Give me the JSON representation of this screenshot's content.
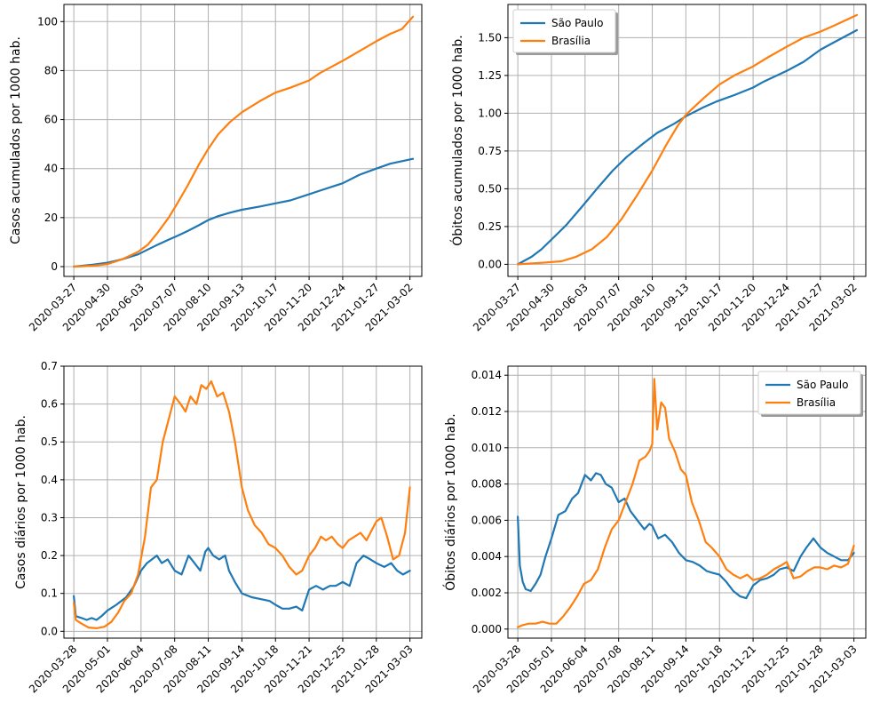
{
  "colors": {
    "sao_paulo": "#1f77b4",
    "brasilia": "#ff7f0e",
    "grid": "#b0b0b0"
  },
  "chart_data": [
    {
      "id": "casos-acumulados",
      "type": "line",
      "title": "",
      "xlabel": "",
      "ylabel": "Casos acumulados por 1000 hab.",
      "x_range": [
        "2020-03-17",
        "2021-03-14"
      ],
      "ylim": [
        -4,
        107
      ],
      "yticks": [
        0,
        20,
        40,
        60,
        80,
        100
      ],
      "ytick_labels": [
        "0",
        "20",
        "40",
        "60",
        "80",
        "100"
      ],
      "xticks": [
        "2020-03-27",
        "2020-04-30",
        "2020-06-03",
        "2020-07-07",
        "2020-08-10",
        "2020-09-13",
        "2020-10-17",
        "2020-11-20",
        "2020-12-24",
        "2021-01-27",
        "2021-03-02"
      ],
      "grid": true,
      "legend": null,
      "series": [
        {
          "key": "sao_paulo",
          "x": [
            "2020-03-27",
            "2020-04-15",
            "2020-04-30",
            "2020-05-15",
            "2020-05-31",
            "2020-06-10",
            "2020-06-20",
            "2020-07-01",
            "2020-07-10",
            "2020-07-20",
            "2020-08-01",
            "2020-08-10",
            "2020-08-20",
            "2020-09-01",
            "2020-09-13",
            "2020-10-01",
            "2020-10-17",
            "2020-11-01",
            "2020-11-20",
            "2020-12-01",
            "2020-12-24",
            "2021-01-10",
            "2021-01-27",
            "2021-02-10",
            "2021-03-05"
          ],
          "y": [
            0,
            0.8,
            1.6,
            3,
            5,
            7,
            9,
            11,
            12.6,
            14.5,
            17,
            19,
            20.6,
            22,
            23.2,
            24.5,
            25.8,
            27,
            29.5,
            31,
            34,
            37.5,
            40,
            42,
            44
          ]
        },
        {
          "key": "brasilia",
          "x": [
            "2020-03-27",
            "2020-04-15",
            "2020-04-30",
            "2020-05-15",
            "2020-05-31",
            "2020-06-10",
            "2020-06-20",
            "2020-07-01",
            "2020-07-10",
            "2020-07-20",
            "2020-08-01",
            "2020-08-10",
            "2020-08-20",
            "2020-09-01",
            "2020-09-13",
            "2020-10-01",
            "2020-10-17",
            "2020-11-01",
            "2020-11-20",
            "2020-12-01",
            "2020-12-24",
            "2021-01-10",
            "2021-01-27",
            "2021-02-10",
            "2021-02-22",
            "2021-03-05"
          ],
          "y": [
            0,
            0.3,
            1,
            3,
            6,
            9,
            14,
            20,
            26,
            33,
            42,
            48,
            54,
            59,
            63,
            67.5,
            71,
            73,
            76,
            79,
            84,
            88,
            92,
            95,
            97,
            102
          ]
        }
      ]
    },
    {
      "id": "obitos-acumulados",
      "type": "line",
      "title": "",
      "xlabel": "",
      "ylabel": "Óbitos acumulados por 1000 hab.",
      "x_range": [
        "2020-03-17",
        "2021-03-14"
      ],
      "ylim": [
        -0.08,
        1.72
      ],
      "yticks": [
        0,
        0.25,
        0.5,
        0.75,
        1.0,
        1.25,
        1.5
      ],
      "ytick_labels": [
        "0.00",
        "0.25",
        "0.50",
        "0.75",
        "1.00",
        "1.25",
        "1.50"
      ],
      "xticks": [
        "2020-03-27",
        "2020-04-30",
        "2020-06-03",
        "2020-07-07",
        "2020-08-10",
        "2020-09-13",
        "2020-10-17",
        "2020-11-20",
        "2020-12-24",
        "2021-01-27",
        "2021-03-02"
      ],
      "grid": true,
      "legend": {
        "placement": "top-left",
        "entries": [
          {
            "key": "sao_paulo",
            "label": "São Paulo"
          },
          {
            "key": "brasilia",
            "label": "Brasília"
          }
        ]
      },
      "series": [
        {
          "key": "sao_paulo",
          "x": [
            "2020-03-27",
            "2020-04-10",
            "2020-04-20",
            "2020-05-01",
            "2020-05-15",
            "2020-06-01",
            "2020-06-15",
            "2020-07-01",
            "2020-07-15",
            "2020-08-01",
            "2020-08-15",
            "2020-09-01",
            "2020-09-13",
            "2020-10-01",
            "2020-10-15",
            "2020-11-01",
            "2020-11-20",
            "2020-12-01",
            "2020-12-24",
            "2021-01-10",
            "2021-01-27",
            "2021-02-10",
            "2021-03-05"
          ],
          "y": [
            0,
            0.05,
            0.1,
            0.17,
            0.26,
            0.39,
            0.5,
            0.62,
            0.71,
            0.8,
            0.87,
            0.93,
            0.98,
            1.04,
            1.08,
            1.12,
            1.17,
            1.21,
            1.28,
            1.34,
            1.42,
            1.47,
            1.55
          ]
        },
        {
          "key": "brasilia",
          "x": [
            "2020-03-27",
            "2020-04-20",
            "2020-05-10",
            "2020-05-25",
            "2020-06-10",
            "2020-06-25",
            "2020-07-10",
            "2020-07-25",
            "2020-08-10",
            "2020-08-25",
            "2020-09-05",
            "2020-09-13",
            "2020-10-01",
            "2020-10-17",
            "2020-11-01",
            "2020-11-20",
            "2020-12-05",
            "2020-12-24",
            "2021-01-10",
            "2021-01-27",
            "2021-02-10",
            "2021-03-05"
          ],
          "y": [
            0,
            0.01,
            0.02,
            0.05,
            0.1,
            0.18,
            0.3,
            0.45,
            0.62,
            0.8,
            0.92,
            0.99,
            1.1,
            1.19,
            1.25,
            1.31,
            1.37,
            1.44,
            1.5,
            1.54,
            1.58,
            1.65
          ]
        }
      ]
    },
    {
      "id": "casos-diarios",
      "type": "line",
      "title": "",
      "xlabel": "",
      "ylabel": "Casos diários por 1000 hab.",
      "x_range": [
        "2020-03-18",
        "2021-03-15"
      ],
      "ylim": [
        -0.018,
        0.7
      ],
      "yticks": [
        0,
        0.1,
        0.2,
        0.3,
        0.4,
        0.5,
        0.6,
        0.7
      ],
      "ytick_labels": [
        "0.0",
        "0.1",
        "0.2",
        "0.3",
        "0.4",
        "0.5",
        "0.6",
        "0.7"
      ],
      "xticks": [
        "2020-03-28",
        "2020-05-01",
        "2020-06-04",
        "2020-07-08",
        "2020-08-11",
        "2020-09-14",
        "2020-10-18",
        "2020-11-21",
        "2020-12-25",
        "2021-01-28",
        "2021-03-03"
      ],
      "grid": true,
      "legend": null,
      "series": [
        {
          "key": "sao_paulo",
          "x": [
            "2020-03-28",
            "2020-03-30",
            "2020-04-05",
            "2020-04-10",
            "2020-04-15",
            "2020-04-20",
            "2020-04-25",
            "2020-05-01",
            "2020-05-10",
            "2020-05-20",
            "2020-05-28",
            "2020-06-04",
            "2020-06-10",
            "2020-06-15",
            "2020-06-20",
            "2020-06-25",
            "2020-07-01",
            "2020-07-08",
            "2020-07-15",
            "2020-07-22",
            "2020-07-28",
            "2020-08-03",
            "2020-08-08",
            "2020-08-11",
            "2020-08-16",
            "2020-08-22",
            "2020-08-28",
            "2020-09-01",
            "2020-09-07",
            "2020-09-14",
            "2020-09-24",
            "2020-10-03",
            "2020-10-12",
            "2020-10-18",
            "2020-10-25",
            "2020-11-01",
            "2020-11-08",
            "2020-11-14",
            "2020-11-21",
            "2020-11-28",
            "2020-12-05",
            "2020-12-12",
            "2020-12-18",
            "2020-12-25",
            "2021-01-01",
            "2021-01-08",
            "2021-01-15",
            "2021-01-22",
            "2021-01-28",
            "2021-02-05",
            "2021-02-12",
            "2021-02-18",
            "2021-02-24",
            "2021-03-03"
          ],
          "y": [
            0.093,
            0.04,
            0.035,
            0.03,
            0.035,
            0.03,
            0.04,
            0.055,
            0.07,
            0.09,
            0.12,
            0.16,
            0.18,
            0.19,
            0.2,
            0.18,
            0.19,
            0.16,
            0.15,
            0.2,
            0.18,
            0.16,
            0.21,
            0.22,
            0.2,
            0.19,
            0.2,
            0.16,
            0.13,
            0.1,
            0.09,
            0.085,
            0.08,
            0.07,
            0.06,
            0.06,
            0.065,
            0.055,
            0.11,
            0.12,
            0.11,
            0.12,
            0.12,
            0.13,
            0.12,
            0.18,
            0.2,
            0.19,
            0.18,
            0.17,
            0.18,
            0.16,
            0.15,
            0.16
          ]
        },
        {
          "key": "brasilia",
          "x": [
            "2020-03-28",
            "2020-03-30",
            "2020-04-05",
            "2020-04-12",
            "2020-04-20",
            "2020-04-28",
            "2020-05-05",
            "2020-05-12",
            "2020-05-18",
            "2020-05-25",
            "2020-06-01",
            "2020-06-08",
            "2020-06-14",
            "2020-06-20",
            "2020-06-26",
            "2020-07-02",
            "2020-07-08",
            "2020-07-14",
            "2020-07-19",
            "2020-07-24",
            "2020-07-30",
            "2020-08-04",
            "2020-08-09",
            "2020-08-14",
            "2020-08-20",
            "2020-08-26",
            "2020-09-01",
            "2020-09-07",
            "2020-09-14",
            "2020-09-20",
            "2020-09-27",
            "2020-10-04",
            "2020-10-11",
            "2020-10-18",
            "2020-10-25",
            "2020-11-01",
            "2020-11-08",
            "2020-11-14",
            "2020-11-21",
            "2020-11-27",
            "2020-12-03",
            "2020-12-08",
            "2020-12-14",
            "2020-12-20",
            "2020-12-25",
            "2020-12-31",
            "2021-01-06",
            "2021-01-12",
            "2021-01-18",
            "2021-01-24",
            "2021-01-28",
            "2021-02-02",
            "2021-02-08",
            "2021-02-14",
            "2021-02-20",
            "2021-02-26",
            "2021-03-03"
          ],
          "y": [
            0.075,
            0.03,
            0.02,
            0.01,
            0.008,
            0.012,
            0.025,
            0.05,
            0.08,
            0.1,
            0.15,
            0.25,
            0.38,
            0.4,
            0.5,
            0.56,
            0.62,
            0.6,
            0.58,
            0.62,
            0.6,
            0.65,
            0.64,
            0.66,
            0.62,
            0.63,
            0.58,
            0.5,
            0.38,
            0.32,
            0.28,
            0.26,
            0.23,
            0.22,
            0.2,
            0.17,
            0.15,
            0.16,
            0.2,
            0.22,
            0.25,
            0.24,
            0.25,
            0.23,
            0.22,
            0.24,
            0.25,
            0.26,
            0.24,
            0.27,
            0.29,
            0.3,
            0.25,
            0.19,
            0.2,
            0.26,
            0.38
          ]
        }
      ]
    },
    {
      "id": "obitos-diarios",
      "type": "line",
      "title": "",
      "xlabel": "",
      "ylabel": "Óbitos diários por 1000 hab.",
      "x_range": [
        "2020-03-18",
        "2021-03-15"
      ],
      "ylim": [
        -0.0005,
        0.0145
      ],
      "yticks": [
        0,
        0.002,
        0.004,
        0.006,
        0.008,
        0.01,
        0.012,
        0.014
      ],
      "ytick_labels": [
        "0.000",
        "0.002",
        "0.004",
        "0.006",
        "0.008",
        "0.010",
        "0.012",
        "0.014"
      ],
      "xticks": [
        "2020-03-28",
        "2020-05-01",
        "2020-06-04",
        "2020-07-08",
        "2020-08-11",
        "2020-09-14",
        "2020-10-18",
        "2020-11-21",
        "2020-12-25",
        "2021-01-28",
        "2021-03-03"
      ],
      "grid": true,
      "legend": {
        "placement": "top-right",
        "entries": [
          {
            "key": "sao_paulo",
            "label": "São Paulo"
          },
          {
            "key": "brasilia",
            "label": "Brasília"
          }
        ]
      },
      "series": [
        {
          "key": "sao_paulo",
          "x": [
            "2020-03-28",
            "2020-03-30",
            "2020-04-02",
            "2020-04-05",
            "2020-04-10",
            "2020-04-15",
            "2020-04-20",
            "2020-04-25",
            "2020-05-01",
            "2020-05-08",
            "2020-05-15",
            "2020-05-22",
            "2020-05-28",
            "2020-06-04",
            "2020-06-10",
            "2020-06-15",
            "2020-06-20",
            "2020-06-25",
            "2020-07-01",
            "2020-07-08",
            "2020-07-14",
            "2020-07-20",
            "2020-07-27",
            "2020-08-03",
            "2020-08-08",
            "2020-08-11",
            "2020-08-17",
            "2020-08-24",
            "2020-08-31",
            "2020-09-07",
            "2020-09-14",
            "2020-09-21",
            "2020-09-28",
            "2020-10-05",
            "2020-10-11",
            "2020-10-18",
            "2020-10-25",
            "2020-11-01",
            "2020-11-08",
            "2020-11-14",
            "2020-11-21",
            "2020-11-28",
            "2020-12-05",
            "2020-12-12",
            "2020-12-18",
            "2020-12-25",
            "2021-01-01",
            "2021-01-08",
            "2021-01-14",
            "2021-01-21",
            "2021-01-28",
            "2021-02-04",
            "2021-02-11",
            "2021-02-18",
            "2021-02-25",
            "2021-03-03"
          ],
          "y": [
            0.0062,
            0.0035,
            0.0026,
            0.0022,
            0.0021,
            0.0025,
            0.003,
            0.004,
            0.005,
            0.0063,
            0.0065,
            0.0072,
            0.0075,
            0.0085,
            0.0082,
            0.0086,
            0.0085,
            0.008,
            0.0078,
            0.007,
            0.0072,
            0.0065,
            0.006,
            0.0055,
            0.0058,
            0.0057,
            0.005,
            0.0052,
            0.0048,
            0.0042,
            0.0038,
            0.0037,
            0.0035,
            0.0032,
            0.0031,
            0.003,
            0.0026,
            0.0021,
            0.0018,
            0.0017,
            0.0024,
            0.0027,
            0.0028,
            0.003,
            0.0033,
            0.0034,
            0.0032,
            0.004,
            0.0045,
            0.005,
            0.0045,
            0.0042,
            0.004,
            0.0038,
            0.0038,
            0.0042
          ]
        },
        {
          "key": "brasilia",
          "x": [
            "2020-03-28",
            "2020-04-01",
            "2020-04-08",
            "2020-04-15",
            "2020-04-22",
            "2020-04-29",
            "2020-05-06",
            "2020-05-13",
            "2020-05-20",
            "2020-05-27",
            "2020-06-03",
            "2020-06-10",
            "2020-06-17",
            "2020-06-24",
            "2020-07-01",
            "2020-07-08",
            "2020-07-15",
            "2020-07-22",
            "2020-07-29",
            "2020-08-04",
            "2020-08-08",
            "2020-08-11",
            "2020-08-13",
            "2020-08-16",
            "2020-08-20",
            "2020-08-24",
            "2020-08-28",
            "2020-09-03",
            "2020-09-09",
            "2020-09-14",
            "2020-09-20",
            "2020-09-27",
            "2020-10-04",
            "2020-10-10",
            "2020-10-18",
            "2020-10-25",
            "2020-11-01",
            "2020-11-08",
            "2020-11-15",
            "2020-11-21",
            "2020-11-28",
            "2020-12-05",
            "2020-12-12",
            "2020-12-19",
            "2020-12-25",
            "2021-01-01",
            "2021-01-08",
            "2021-01-15",
            "2021-01-22",
            "2021-01-28",
            "2021-02-04",
            "2021-02-11",
            "2021-02-18",
            "2021-02-25",
            "2021-03-03"
          ],
          "y": [
            0.0001,
            0.0002,
            0.0003,
            0.0003,
            0.0004,
            0.0003,
            0.0003,
            0.0007,
            0.0012,
            0.0018,
            0.0025,
            0.0027,
            0.0033,
            0.0045,
            0.0055,
            0.006,
            0.007,
            0.008,
            0.0093,
            0.0095,
            0.0098,
            0.0102,
            0.0138,
            0.011,
            0.0125,
            0.0122,
            0.0105,
            0.0098,
            0.0088,
            0.0085,
            0.007,
            0.006,
            0.0048,
            0.0045,
            0.004,
            0.0033,
            0.003,
            0.0028,
            0.003,
            0.0027,
            0.0028,
            0.003,
            0.0033,
            0.0035,
            0.0037,
            0.0028,
            0.0029,
            0.0032,
            0.0034,
            0.0034,
            0.0033,
            0.0035,
            0.0034,
            0.0036,
            0.0046
          ]
        }
      ]
    }
  ]
}
